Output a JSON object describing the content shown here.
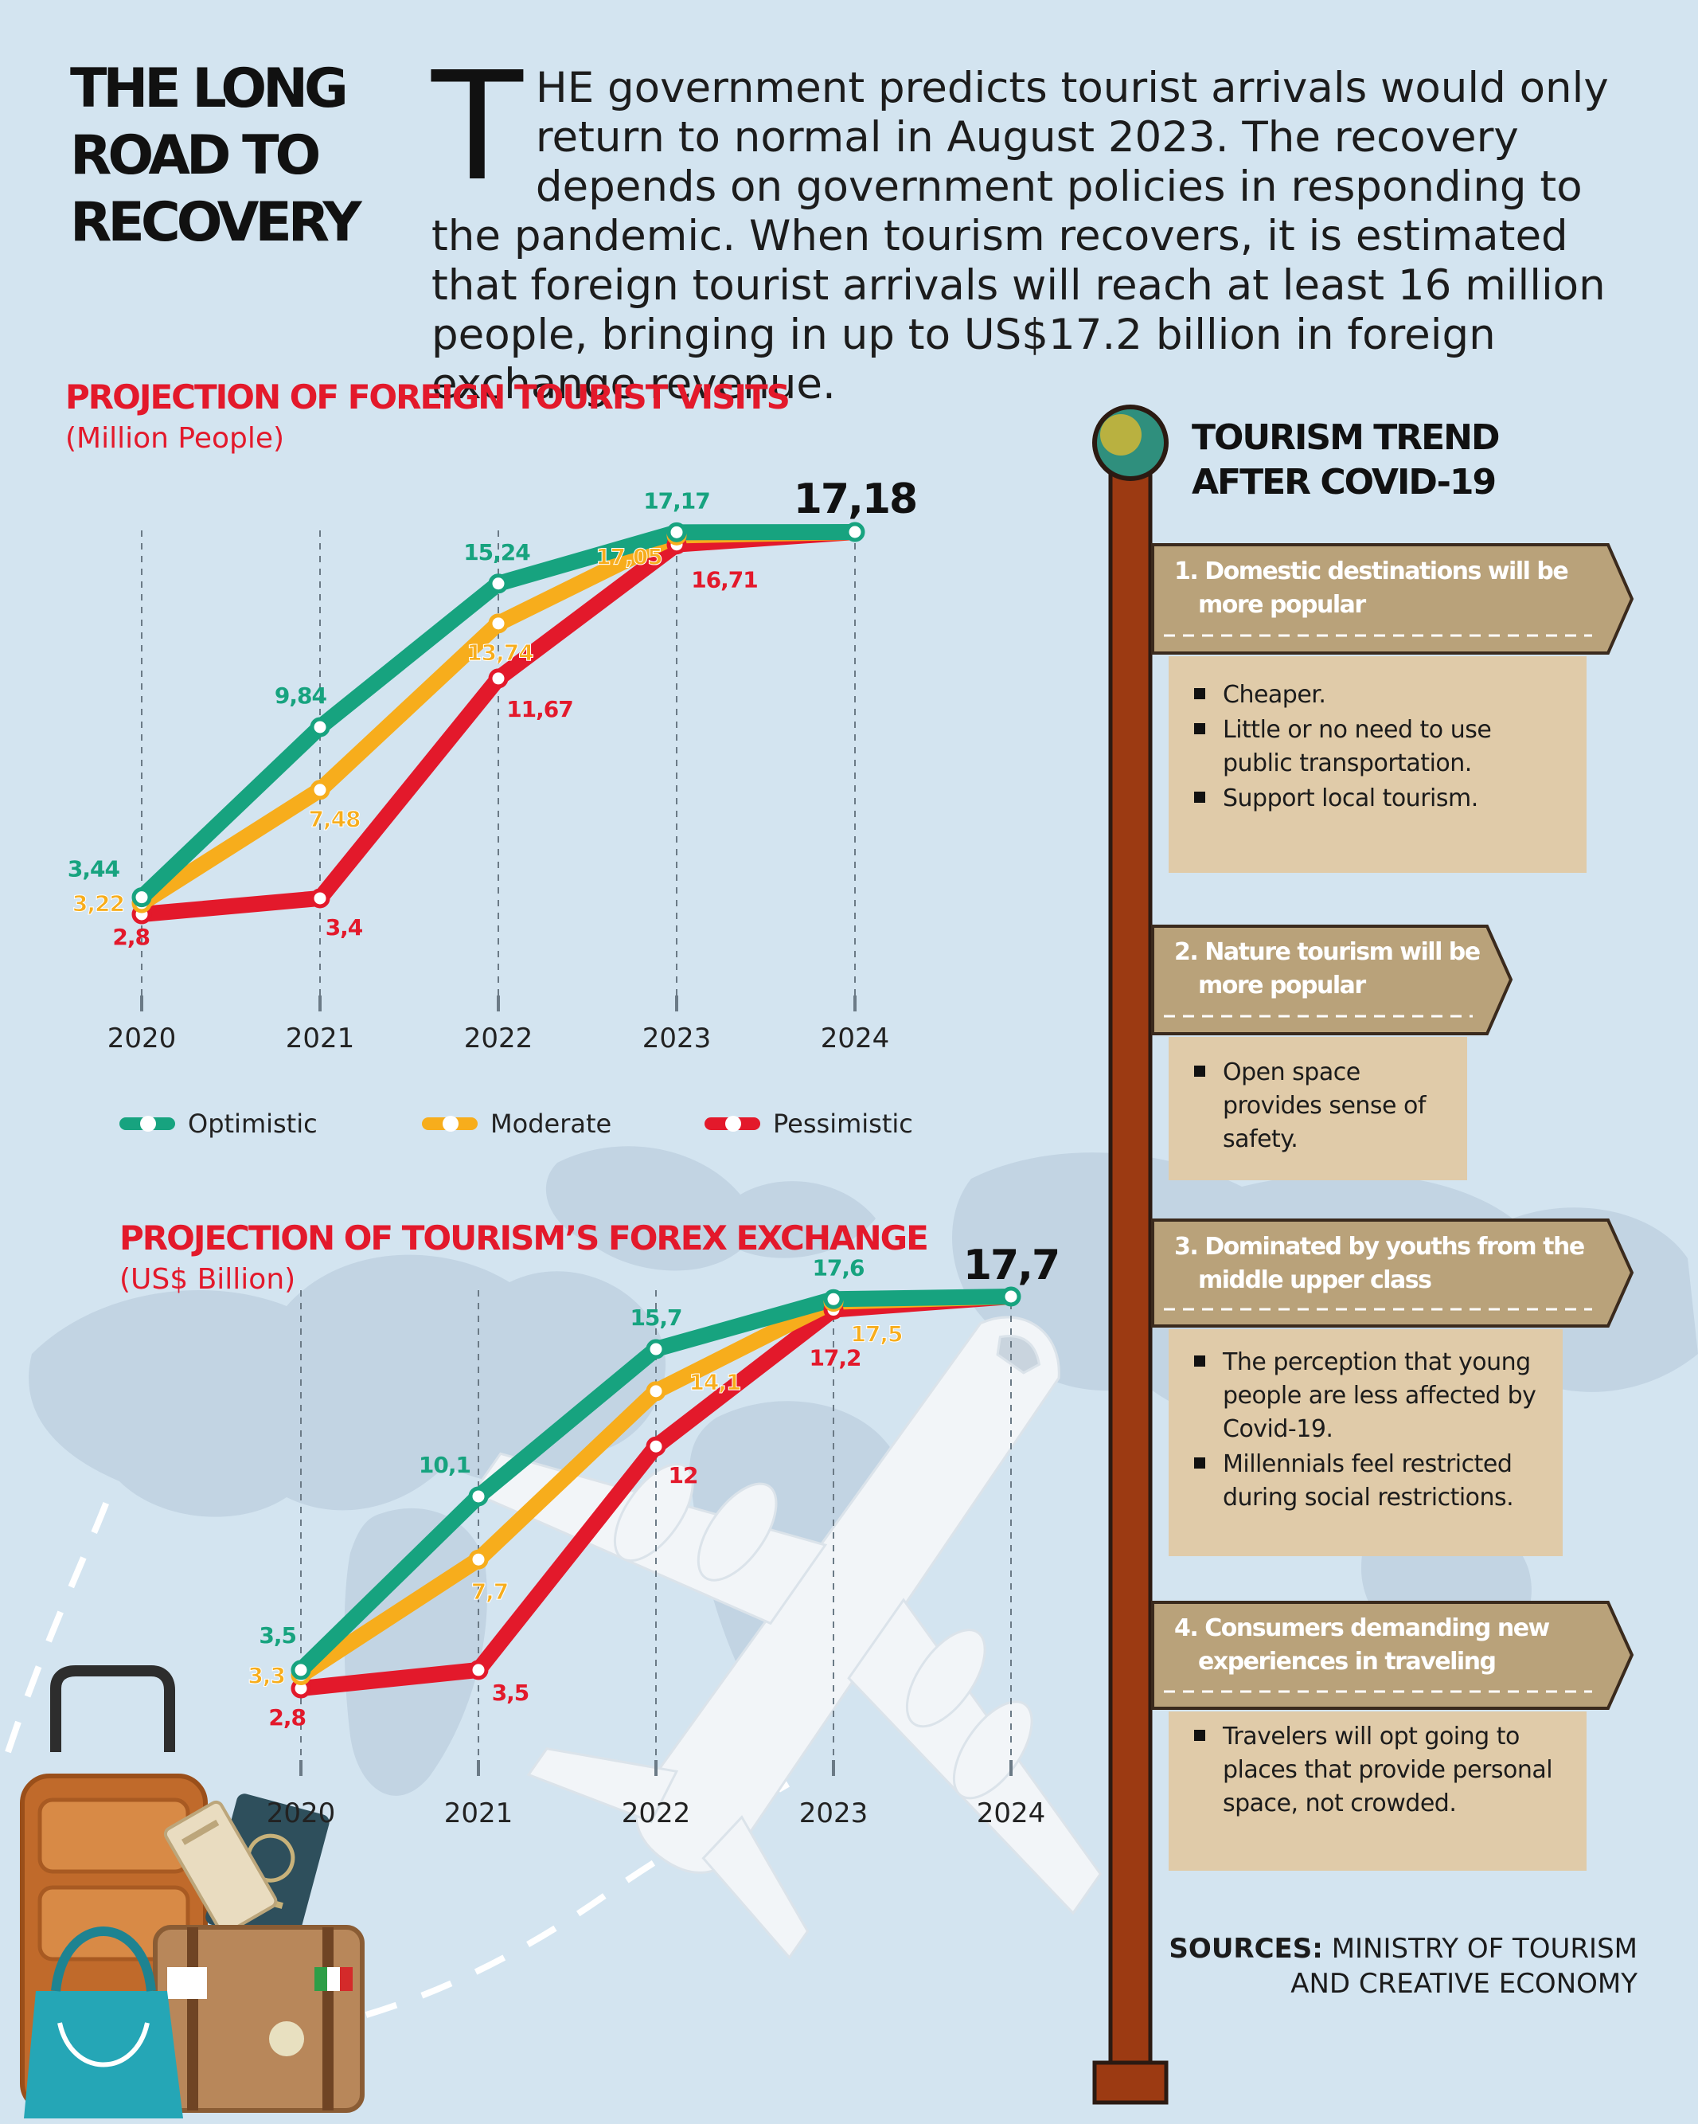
{
  "header": {
    "title_lines": [
      "THE LONG",
      "ROAD TO",
      "RECOVERY"
    ],
    "intro_dropcap": "T",
    "intro_text": "HE government predicts tourist arrivals would only return to normal in August 2023. The recovery depends on government policies in responding to the pandemic. When tourism recovers, it is estimated that foreign tourist arrivals will reach at least 16 million people, bringing in up to US$17.2 billion in foreign exchange revenue."
  },
  "colors": {
    "optimistic": "#17a37f",
    "moderate": "#f7ad1c",
    "pessimistic": "#e3192b",
    "accent_red": "#e3192b",
    "banner": "#b9a27a",
    "card": "#e0cba9",
    "pole": "#9c3a12"
  },
  "legend": {
    "optimistic": "Optimistic",
    "moderate": "Moderate",
    "pessimistic": "Pessimistic"
  },
  "chart_data": [
    {
      "type": "line",
      "title": "PROJECTION OF FOREIGN TOURIST VISITS",
      "unit": "(Million People)",
      "x": [
        "2020",
        "2021",
        "2022",
        "2023",
        "2024"
      ],
      "series": [
        {
          "name": "Optimistic",
          "key": "optimistic",
          "values": [
            3.44,
            9.84,
            15.24,
            17.17,
            17.18
          ],
          "labels": [
            "3,44",
            "9,84",
            "15,24",
            "17,17",
            "17,18"
          ]
        },
        {
          "name": "Moderate",
          "key": "moderate",
          "values": [
            3.22,
            7.48,
            13.74,
            17.05,
            17.18
          ],
          "labels": [
            "3,22",
            "7,48",
            "13,74",
            "17,05",
            ""
          ]
        },
        {
          "name": "Pessimistic",
          "key": "pessimistic",
          "values": [
            2.8,
            3.4,
            11.67,
            16.71,
            17.18
          ],
          "labels": [
            "2,8",
            "3,4",
            "11,67",
            "16,71",
            ""
          ]
        }
      ],
      "legend": "bottom",
      "grid": "vertical dashed"
    },
    {
      "type": "line",
      "title": "PROJECTION OF TOURISM’S FOREX EXCHANGE",
      "unit": "(US$ Billion)",
      "x": [
        "2020",
        "2021",
        "2022",
        "2023",
        "2024"
      ],
      "series": [
        {
          "name": "Optimistic",
          "key": "optimistic",
          "values": [
            3.5,
            10.1,
            15.7,
            17.6,
            17.7
          ],
          "labels": [
            "3,5",
            "10,1",
            "15,7",
            "17,6",
            "17,7"
          ]
        },
        {
          "name": "Moderate",
          "key": "moderate",
          "values": [
            3.3,
            7.7,
            14.1,
            17.5,
            17.7
          ],
          "labels": [
            "3,3",
            "7,7",
            "14,1",
            "17,5",
            ""
          ]
        },
        {
          "name": "Pessimistic",
          "key": "pessimistic",
          "values": [
            2.8,
            3.5,
            12,
            17.2,
            17.7
          ],
          "labels": [
            "2,8",
            "3,5",
            "12",
            "17,2",
            ""
          ]
        }
      ],
      "grid": "vertical dashed"
    }
  ],
  "trend": {
    "title_lines": [
      "TOURISM TREND",
      "AFTER COVID-19"
    ],
    "items": [
      {
        "heading": [
          "1. Domestic destinations will be",
          "more popular"
        ],
        "points": [
          "Cheaper.",
          "Little or no need to use public transportation.",
          "Support local tourism."
        ]
      },
      {
        "heading": [
          "2. Nature tourism will be",
          "more popular"
        ],
        "points": [
          "Open space provides sense of safety."
        ]
      },
      {
        "heading": [
          "3. Dominated by youths from the",
          "middle upper class"
        ],
        "points": [
          "The perception that young people are less affected by Covid-19.",
          "Millennials feel restricted during social restrictions."
        ]
      },
      {
        "heading": [
          "4. Consumers demanding new",
          "experiences in traveling"
        ],
        "points": [
          "Travelers will opt going to places that provide personal space, not crowded."
        ]
      }
    ]
  },
  "sources": {
    "label": "SOURCES:",
    "line1": "MINISTRY OF TOURISM",
    "line2": "AND CREATIVE ECONOMY"
  }
}
